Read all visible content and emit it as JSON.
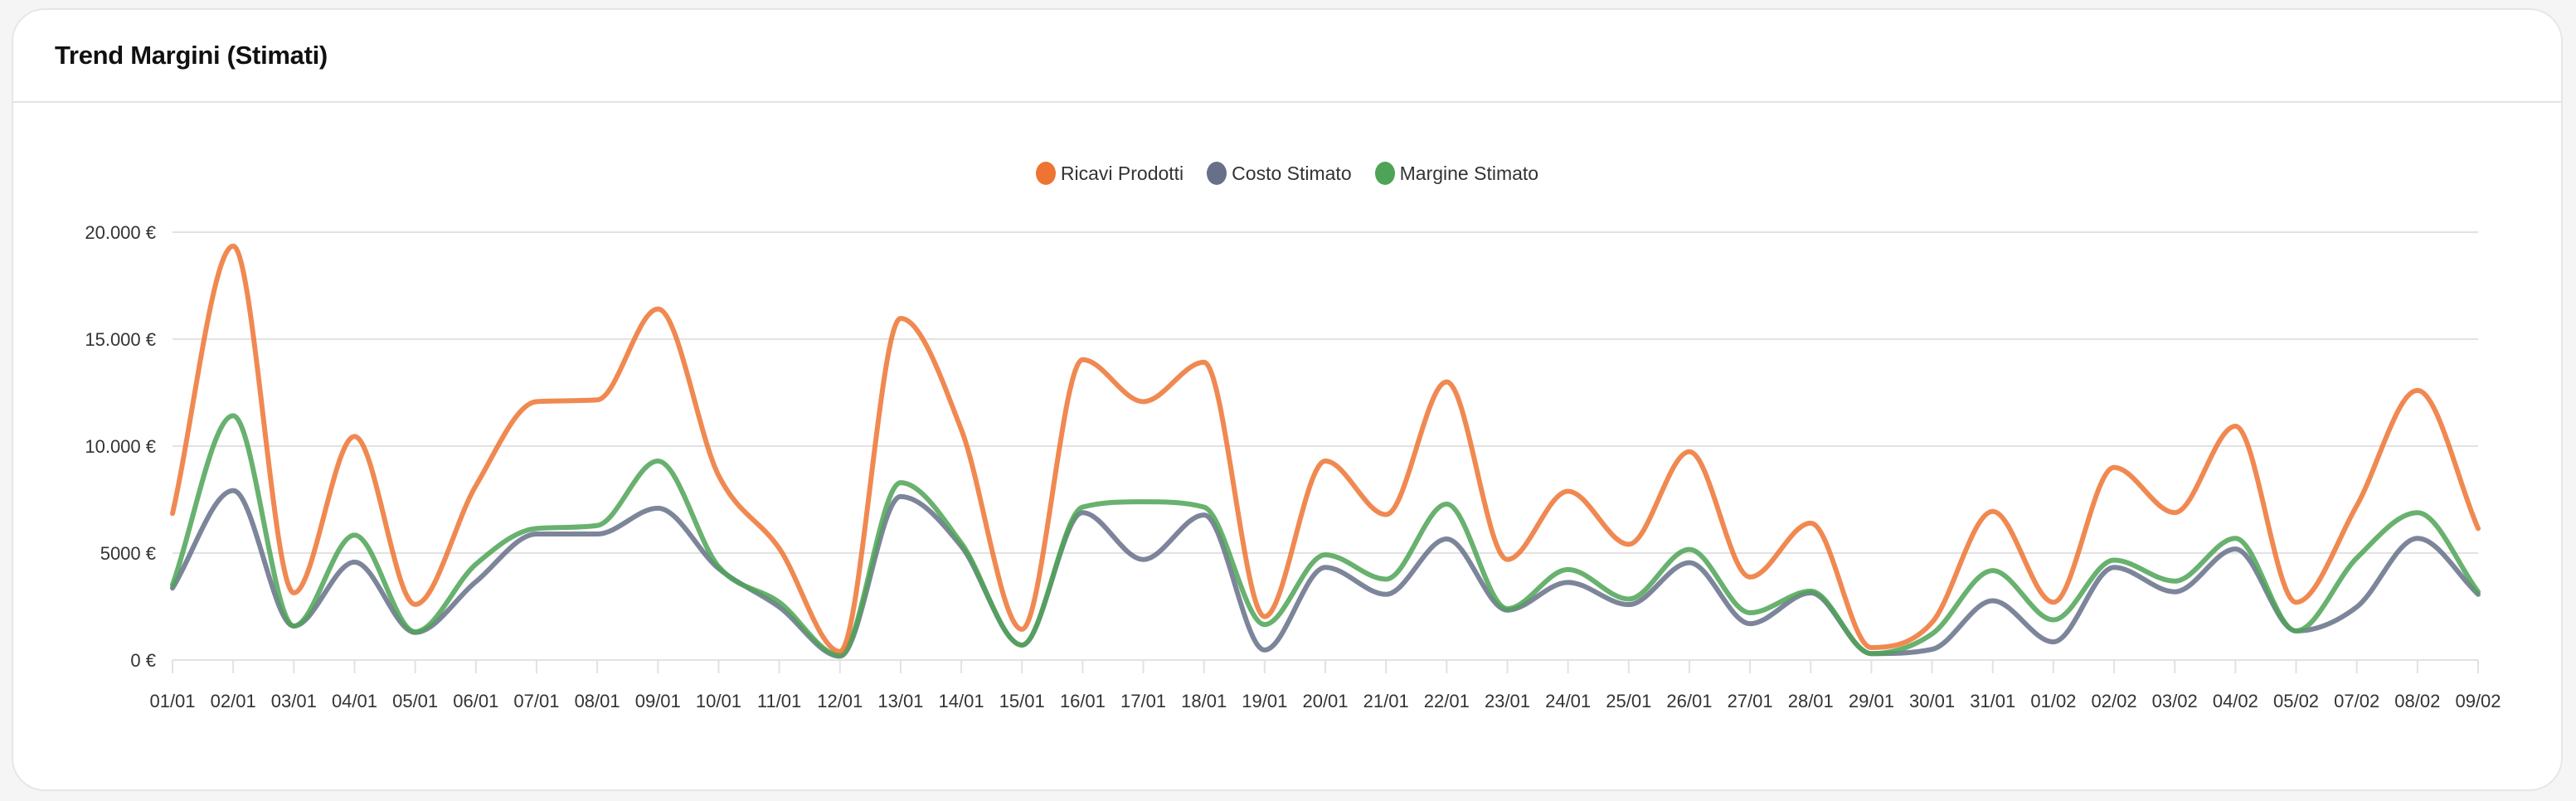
{
  "card": {
    "title": "Trend Margini (Stimati)"
  },
  "chart_data": {
    "type": "line",
    "title": "",
    "xlabel": "",
    "ylabel": "",
    "ylim": [
      0,
      20000
    ],
    "grid": true,
    "legend_position": "top",
    "y_ticks": [
      {
        "value": 0,
        "label": "0 €"
      },
      {
        "value": 5000,
        "label": "5000 €"
      },
      {
        "value": 10000,
        "label": "10.000 €"
      },
      {
        "value": 15000,
        "label": "15.000 €"
      },
      {
        "value": 20000,
        "label": "20.000 €"
      }
    ],
    "categories": [
      "01/01",
      "02/01",
      "03/01",
      "04/01",
      "05/01",
      "06/01",
      "07/01",
      "08/01",
      "09/01",
      "10/01",
      "11/01",
      "12/01",
      "13/01",
      "14/01",
      "15/01",
      "16/01",
      "17/01",
      "18/01",
      "19/01",
      "20/01",
      "21/01",
      "22/01",
      "23/01",
      "24/01",
      "25/01",
      "26/01",
      "27/01",
      "28/01",
      "29/01",
      "30/01",
      "31/01",
      "01/02",
      "02/02",
      "03/02",
      "04/02",
      "05/02",
      "07/02",
      "08/02",
      "09/02"
    ],
    "series": [
      {
        "name": "Ricavi Prodotti",
        "color": "#ED7433",
        "values": [
          6850,
          19350,
          3140,
          10450,
          2600,
          8150,
          12080,
          12160,
          16410,
          8630,
          5220,
          400,
          15970,
          10780,
          1440,
          14040,
          12080,
          13920,
          2030,
          9300,
          6800,
          13000,
          4700,
          7890,
          5410,
          9740,
          3880,
          6400,
          580,
          1760,
          6950,
          2700,
          9000,
          6890,
          10930,
          2700,
          7220,
          12600,
          6150
        ]
      },
      {
        "name": "Costo Stimato",
        "color": "#667089",
        "values": [
          3365,
          7920,
          1590,
          4580,
          1290,
          3660,
          5890,
          5890,
          7100,
          4280,
          2480,
          180,
          7640,
          5320,
          700,
          6890,
          4700,
          6780,
          470,
          4330,
          3070,
          5660,
          2330,
          3630,
          2590,
          4550,
          1700,
          3140,
          300,
          500,
          2770,
          850,
          4330,
          3190,
          5190,
          1360,
          2480,
          5690,
          3070
        ]
      },
      {
        "name": "Margine Stimato",
        "color": "#4DA356",
        "values": [
          3510,
          11420,
          1590,
          5840,
          1320,
          4480,
          6150,
          6290,
          9300,
          4370,
          2700,
          220,
          8290,
          5470,
          700,
          7150,
          7400,
          7150,
          1660,
          4920,
          3780,
          7290,
          2400,
          4230,
          2850,
          5170,
          2210,
          3220,
          300,
          1220,
          4180,
          1880,
          4670,
          3690,
          5690,
          1360,
          4770,
          6890,
          3190
        ]
      }
    ]
  }
}
